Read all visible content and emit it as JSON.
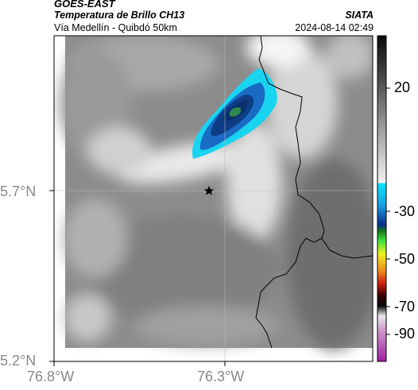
{
  "header": {
    "satellite": "GOES-EAST",
    "product": "Temperatura de Brillo CH13",
    "region": "Vía Medellín - Quibdó 50km",
    "source": "SIATA",
    "datetime": "2024-08-14 02:49"
  },
  "axes": {
    "lat_labels": [
      "5.7°N",
      "5.2°N"
    ],
    "lon_labels": [
      "76.8°W",
      "76.3°W"
    ]
  },
  "colorbar": {
    "ticks": [
      "20",
      "-30",
      "-50",
      "-70",
      "-90"
    ]
  },
  "colors": {
    "cold_cloud_cyan": "#19d4f0",
    "cold_cloud_blue": "#1a6bc4",
    "cold_cloud_core": "#0a2f6a",
    "core_green": "#2f8a4f",
    "border_line": "#000000"
  },
  "markers": {
    "star_icon": "star-icon"
  }
}
